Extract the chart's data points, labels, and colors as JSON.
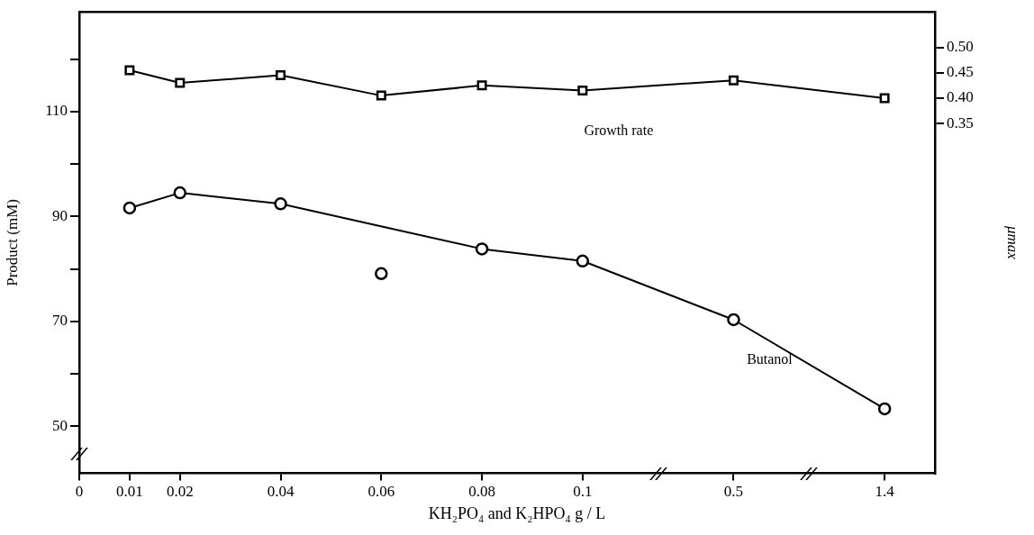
{
  "chart_data": {
    "type": "line",
    "xlabel": "KH₂PO₄ and K₂HPO₄ g / L",
    "ylabel": "Product (mM)",
    "y2label": "μmax",
    "categories": [
      "0",
      "0.01",
      "0.02",
      null,
      "0.04",
      null,
      "0.06",
      null,
      "0.08",
      null,
      "0.1",
      null,
      null,
      "0.5",
      null,
      null,
      "1.4",
      null
    ],
    "series": [
      {
        "type": "line",
        "name": "Butanol",
        "color": "#000000",
        "marker": "circle",
        "values": [
          null,
          91.6,
          94.5,
          null,
          92.4,
          null,
          null,
          null,
          83.8,
          null,
          81.5,
          null,
          null,
          70.3,
          null,
          null,
          53.3,
          null
        ]
      },
      {
        "type": "scatter",
        "color": "#000000",
        "marker": "circle",
        "values": [
          null,
          null,
          null,
          null,
          null,
          null,
          79.1,
          null,
          null,
          null,
          null,
          null,
          null,
          null,
          null,
          null,
          null,
          null
        ]
      },
      {
        "type": "line",
        "name": "Growth rate",
        "axis": "y2",
        "color": "#000000",
        "marker": "square",
        "values": [
          null,
          0.455,
          0.43,
          null,
          0.445,
          null,
          0.405,
          null,
          0.425,
          null,
          0.415,
          null,
          null,
          0.435,
          null,
          null,
          0.4,
          null
        ]
      }
    ],
    "ylim": [
      41,
      129
    ],
    "yticks": [
      50,
      {
        "value": 60,
        "label": null
      },
      70,
      {
        "value": 80,
        "label": null
      },
      90,
      {
        "value": 100,
        "label": null
      },
      110,
      {
        "value": 120,
        "label": null
      }
    ],
    "y2lim": [
      -0.34,
      0.57
    ],
    "y2ticks": [
      {
        "value": 0.35,
        "label": "0.35"
      },
      {
        "value": 0.4,
        "label": "0.40"
      },
      {
        "value": 0.45,
        "label": "0.45"
      },
      {
        "value": 0.5,
        "label": "0.50"
      }
    ],
    "grid": false,
    "legend": false
  }
}
